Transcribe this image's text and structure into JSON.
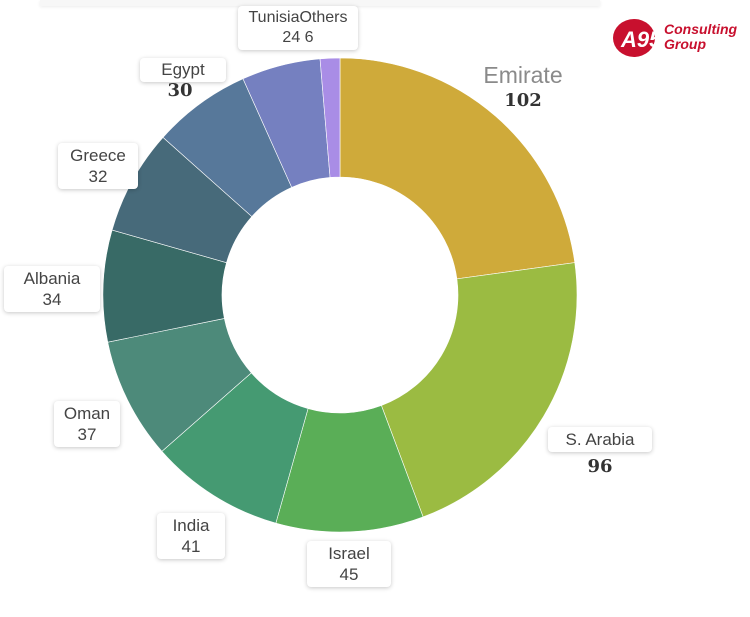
{
  "logo": {
    "brand": "A95",
    "name_line1": "Consulting",
    "name_line2": "Group",
    "color": "#c8102e"
  },
  "chart_data": {
    "type": "pie",
    "donut": true,
    "start_angle_deg": 0,
    "direction": "clockwise",
    "slices": [
      {
        "label": "Emirate",
        "value": 102,
        "color": "#cfaa3a"
      },
      {
        "label": "S. Arabia",
        "value": 96,
        "color": "#9bbb42"
      },
      {
        "label": "Israel",
        "value": 45,
        "color": "#5aae57"
      },
      {
        "label": "India",
        "value": 41,
        "color": "#459a72"
      },
      {
        "label": "Oman",
        "value": 37,
        "color": "#4d8a7a"
      },
      {
        "label": "Albania",
        "value": 34,
        "color": "#386a66"
      },
      {
        "label": "Greece",
        "value": 32,
        "color": "#476a7a"
      },
      {
        "label": "Egypt",
        "value": 30,
        "color": "#57789a"
      },
      {
        "label": "Tunisia",
        "value": 24,
        "color": "#7580c0"
      },
      {
        "label": "Others",
        "value": 6,
        "color": "#a98de6"
      }
    ]
  }
}
